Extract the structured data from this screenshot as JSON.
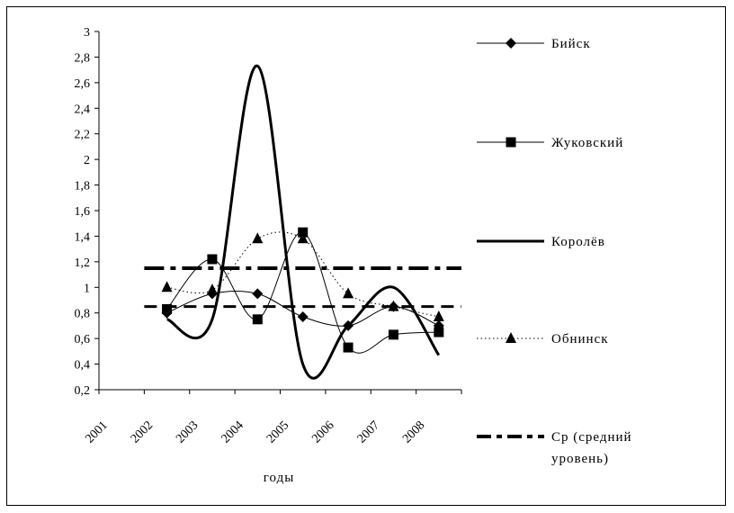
{
  "chart_data": {
    "type": "line",
    "title": "",
    "xlabel": "годы",
    "ylabel": "",
    "ylim": [
      0.2,
      3
    ],
    "yticks": [
      "0,2",
      "0,4",
      "0,6",
      "0,8",
      "1",
      "1,2",
      "1,4",
      "1,6",
      "1,8",
      "2",
      "2,2",
      "2,4",
      "2,6",
      "2,8",
      "3"
    ],
    "xticks": [
      "2001",
      "2002",
      "2003",
      "2004",
      "2005",
      "2006",
      "2007",
      "2008"
    ],
    "grid": false,
    "legend_position": "right",
    "series": [
      {
        "name": "Бийск",
        "marker": "diamond",
        "style": "solid-thin",
        "points": [
          [
            2002.5,
            0.8
          ],
          [
            2003.5,
            0.95
          ],
          [
            2004.5,
            0.95
          ],
          [
            2005.5,
            0.77
          ],
          [
            2006.5,
            0.7
          ],
          [
            2007.5,
            0.85
          ],
          [
            2008.5,
            0.7
          ]
        ]
      },
      {
        "name": "Жуковский",
        "marker": "square",
        "style": "solid-thin",
        "points": [
          [
            2002.5,
            0.83
          ],
          [
            2003.5,
            1.22
          ],
          [
            2004.5,
            0.75
          ],
          [
            2005.5,
            1.43
          ],
          [
            2006.5,
            0.53
          ],
          [
            2007.5,
            0.63
          ],
          [
            2008.5,
            0.65
          ]
        ]
      },
      {
        "name": "Королёв",
        "marker": "none",
        "style": "solid-thick",
        "points": [
          [
            2002.5,
            0.75
          ],
          [
            2003.5,
            0.75
          ],
          [
            2004.5,
            2.73
          ],
          [
            2005.5,
            0.4
          ],
          [
            2006.5,
            0.7
          ],
          [
            2007.5,
            1.0
          ],
          [
            2008.5,
            0.47
          ]
        ]
      },
      {
        "name": "Обнинск",
        "marker": "triangle",
        "style": "dotted",
        "points": [
          [
            2002.5,
            1.0
          ],
          [
            2003.5,
            0.98
          ],
          [
            2004.5,
            1.38
          ],
          [
            2005.5,
            1.38
          ],
          [
            2006.5,
            0.95
          ],
          [
            2007.5,
            0.85
          ],
          [
            2008.5,
            0.77
          ]
        ]
      },
      {
        "name": "Ср (средний уровень)",
        "marker": "none",
        "style": "dash-dot",
        "points": [
          [
            2002,
            1.15
          ],
          [
            2009,
            1.15
          ]
        ]
      },
      {
        "name": "",
        "marker": "none",
        "style": "dashed",
        "points": [
          [
            2002,
            0.85
          ],
          [
            2009,
            0.85
          ]
        ]
      }
    ],
    "legend": [
      "Бийск",
      "Жуковский",
      "Королёв",
      "Обнинск",
      "Ср (средний",
      "уровень)"
    ]
  }
}
